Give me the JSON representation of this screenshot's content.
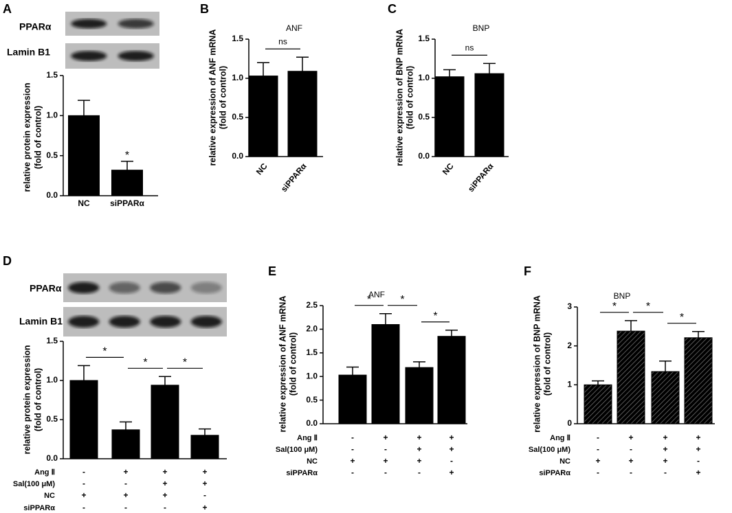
{
  "chart_data": [
    {
      "type": "bar",
      "panel": "A",
      "blot_labels": [
        "PPARα",
        "Lamin B1"
      ],
      "ylabel": [
        "relative protein expression",
        "(fold of control)"
      ],
      "categories": [
        "NC",
        "siPPARα"
      ],
      "values": [
        1.0,
        0.32
      ],
      "errors": [
        0.19,
        0.11
      ],
      "color": "#000000",
      "ylim": [
        0,
        1.5
      ],
      "yticks": [
        {
          "value": 0,
          "label": "0.0"
        },
        0.5,
        {
          "value": 1,
          "label": "1.0"
        },
        1.5
      ],
      "annotations": [
        {
          "index": 1,
          "label": "*"
        }
      ]
    },
    {
      "type": "bar",
      "panel": "B",
      "title": "ANF",
      "ylabel": [
        "relative expression of ANF mRNA",
        "(fold of control)"
      ],
      "categories": [
        "NC",
        "siPPARα"
      ],
      "values": [
        1.03,
        1.09
      ],
      "errors": [
        0.17,
        0.18
      ],
      "color": "#000000",
      "ylim": [
        0,
        1.5
      ],
      "yticks": [
        {
          "value": 0,
          "label": "0.0"
        },
        0.5,
        {
          "value": 1,
          "label": "1.0"
        },
        1.5
      ],
      "significance": [
        {
          "from": 0,
          "to": 1,
          "label": "ns"
        }
      ]
    },
    {
      "type": "bar",
      "panel": "C",
      "title": "BNP",
      "ylabel": [
        "relative expression of BNP mRNA",
        "(fold of control)"
      ],
      "categories": [
        "NC",
        "siPPARα"
      ],
      "values": [
        1.02,
        1.06
      ],
      "errors": [
        0.09,
        0.13
      ],
      "color": "#000000",
      "ylim": [
        0,
        1.5
      ],
      "yticks": [
        {
          "value": 0,
          "label": "0.0"
        },
        0.5,
        {
          "value": 1,
          "label": "1.0"
        },
        1.5
      ],
      "significance": [
        {
          "from": 0,
          "to": 1,
          "label": "ns"
        }
      ]
    },
    {
      "type": "bar",
      "panel": "D",
      "blot_labels": [
        "PPARα",
        "Lamin B1"
      ],
      "ylabel": [
        "relative protein expression",
        "(fold of control)"
      ],
      "values": [
        1.0,
        0.37,
        0.94,
        0.3
      ],
      "errors": [
        0.19,
        0.1,
        0.11,
        0.08
      ],
      "color": "#000000",
      "ylim": [
        0,
        1.5
      ],
      "yticks": [
        {
          "value": 0,
          "label": "0.0"
        },
        0.5,
        {
          "value": 1,
          "label": "1.0"
        },
        1.5
      ],
      "significance": [
        {
          "from": 0,
          "to": 1,
          "label": "*"
        },
        {
          "from": 1,
          "to": 2,
          "label": "*"
        },
        {
          "from": 2,
          "to": 3,
          "label": "*"
        }
      ],
      "conditions": [
        {
          "name": "Ang Ⅱ",
          "marks": [
            "-",
            "+",
            "+",
            "+"
          ]
        },
        {
          "name": "Sal(100 μM)",
          "marks": [
            "-",
            "-",
            "+",
            "+"
          ]
        },
        {
          "name": "NC",
          "marks": [
            "+",
            "+",
            "+",
            "-"
          ]
        },
        {
          "name": "siPPARα",
          "marks": [
            "-",
            "-",
            "-",
            "+"
          ]
        }
      ]
    },
    {
      "type": "bar",
      "panel": "E",
      "title": "ANF",
      "ylabel": [
        "relative expression of ANF mRNA",
        "(fold of control)"
      ],
      "values": [
        1.03,
        2.1,
        1.19,
        1.85
      ],
      "errors": [
        0.17,
        0.23,
        0.12,
        0.13
      ],
      "color": "#000000",
      "ylim": [
        0,
        2.5
      ],
      "yticks": [
        {
          "value": 0,
          "label": "0.0"
        },
        0.5,
        {
          "value": 1,
          "label": "1.0"
        },
        1.5,
        {
          "value": 2,
          "label": "2.0"
        },
        2.5
      ],
      "significance": [
        {
          "from": 0,
          "to": 1,
          "label": "*"
        },
        {
          "from": 1,
          "to": 2,
          "label": "*"
        },
        {
          "from": 2,
          "to": 3,
          "label": "*"
        }
      ],
      "conditions": [
        {
          "name": "Ang Ⅱ",
          "marks": [
            "-",
            "+",
            "+",
            "+"
          ]
        },
        {
          "name": "Sal(100 μM)",
          "marks": [
            "-",
            "-",
            "+",
            "+"
          ]
        },
        {
          "name": "NC",
          "marks": [
            "+",
            "+",
            "+",
            "-"
          ]
        },
        {
          "name": "siPPARα",
          "marks": [
            "-",
            "-",
            "-",
            "+"
          ]
        }
      ]
    },
    {
      "type": "bar",
      "panel": "F",
      "title": "BNP",
      "hatch": true,
      "ylabel": [
        "relative expression of BNP mRNA",
        "(fold of control)"
      ],
      "values": [
        1.0,
        2.38,
        1.34,
        2.21
      ],
      "errors": [
        0.1,
        0.27,
        0.27,
        0.16
      ],
      "color": "#000000",
      "ylim": [
        0,
        3
      ],
      "yticks": [
        0,
        1,
        2,
        3
      ],
      "significance": [
        {
          "from": 0,
          "to": 1,
          "label": "*"
        },
        {
          "from": 1,
          "to": 2,
          "label": "*"
        },
        {
          "from": 2,
          "to": 3,
          "label": "*"
        }
      ],
      "conditions": [
        {
          "name": "Ang Ⅱ",
          "marks": [
            "-",
            "+",
            "+",
            "+"
          ]
        },
        {
          "name": "Sal(100 μM)",
          "marks": [
            "-",
            "-",
            "+",
            "+"
          ]
        },
        {
          "name": "NC",
          "marks": [
            "+",
            "+",
            "+",
            "-"
          ]
        },
        {
          "name": "siPPARα",
          "marks": [
            "-",
            "-",
            "-",
            "+"
          ]
        }
      ]
    }
  ]
}
